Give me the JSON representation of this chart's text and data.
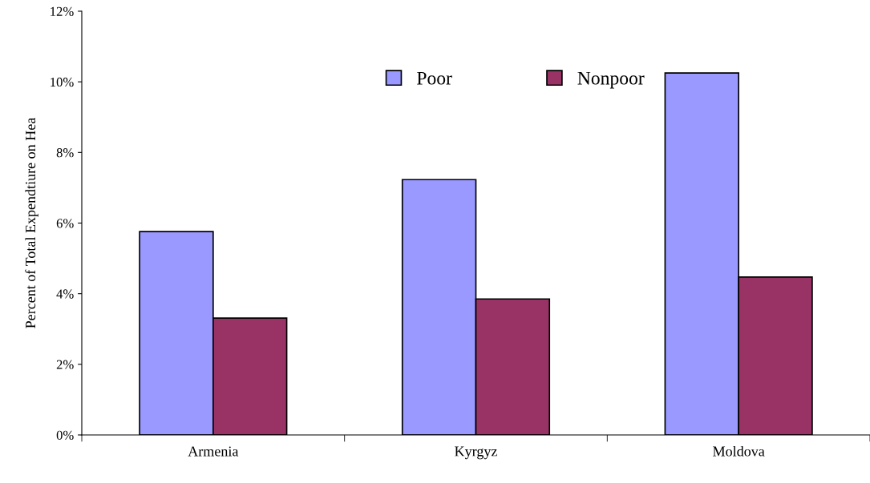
{
  "chart_data": {
    "type": "bar",
    "ylabel": "Percent of Total Expendtiure on Hea",
    "categories": [
      "Armenia",
      "Kyrgyz",
      "Moldova"
    ],
    "series": [
      {
        "name": "Poor",
        "color": "#9999ff",
        "values": [
          5.76,
          7.23,
          10.25
        ]
      },
      {
        "name": "Nonpoor",
        "color": "#993366",
        "values": [
          3.31,
          3.85,
          4.47
        ]
      }
    ],
    "ylim": [
      0,
      12
    ],
    "yticks": [
      {
        "value": 0,
        "label": "0%"
      },
      {
        "value": 2,
        "label": "2%"
      },
      {
        "value": 4,
        "label": "4%"
      },
      {
        "value": 6,
        "label": "6%"
      },
      {
        "value": 8,
        "label": "8%"
      },
      {
        "value": 10,
        "label": "10%"
      },
      {
        "value": 12,
        "label": "12%"
      }
    ],
    "grid": false,
    "legend": "top"
  }
}
